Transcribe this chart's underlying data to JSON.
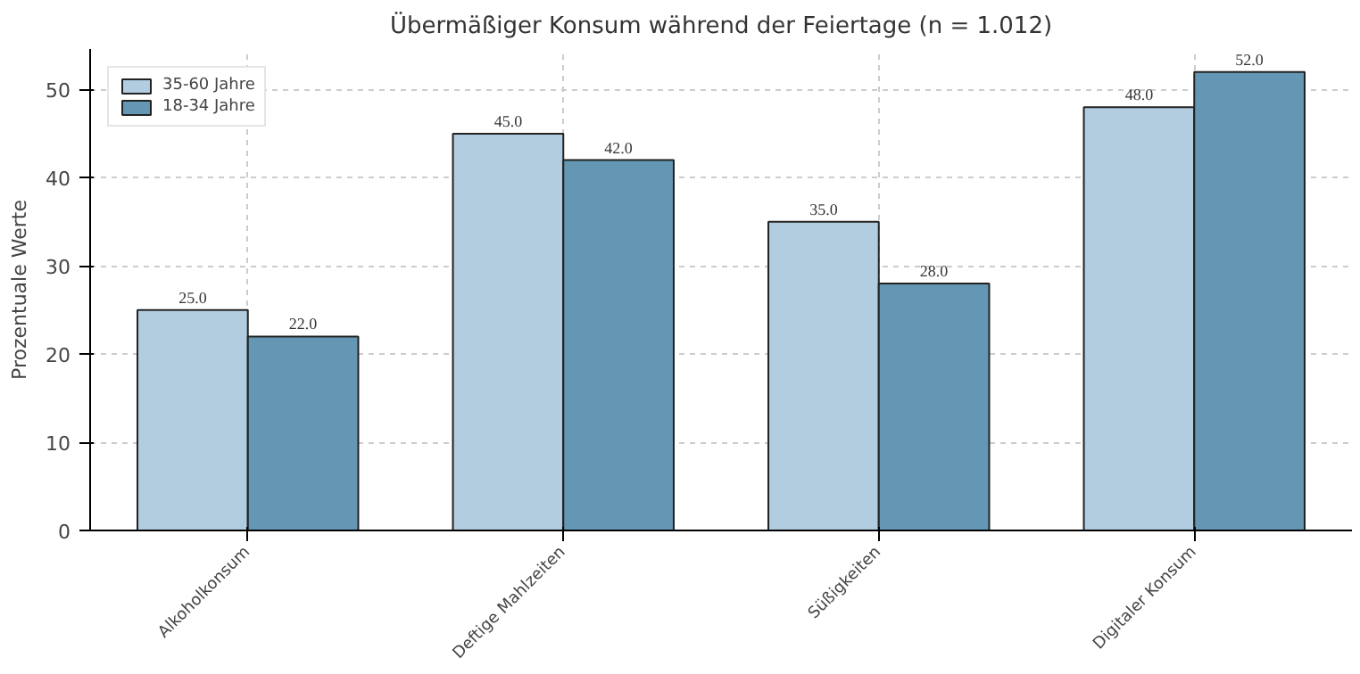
{
  "chart_data": {
    "type": "bar",
    "title": "Übermäßiger Konsum während der Feiertage (n = 1.012)",
    "ylabel": "Prozentuale Werte",
    "categories": [
      "Alkoholkonsum",
      "Deftige Mahlzeiten",
      "Süßigkeiten",
      "Digitaler Konsum"
    ],
    "series": [
      {
        "name": "35-60 Jahre",
        "color": "#b2cce0",
        "values": [
          25,
          45,
          35,
          48
        ],
        "value_labels": [
          "25.0",
          "45.0",
          "35.0",
          "48.0"
        ]
      },
      {
        "name": "18-34 Jahre",
        "color": "#6497b3",
        "values": [
          22,
          42,
          28,
          52
        ],
        "value_labels": [
          "22.0",
          "42.0",
          "28.0",
          "52.0"
        ]
      }
    ],
    "ylim": [
      0,
      54.6
    ],
    "yticks": [
      0,
      10,
      20,
      30,
      40,
      50
    ],
    "grid": true,
    "legend": "top left"
  }
}
